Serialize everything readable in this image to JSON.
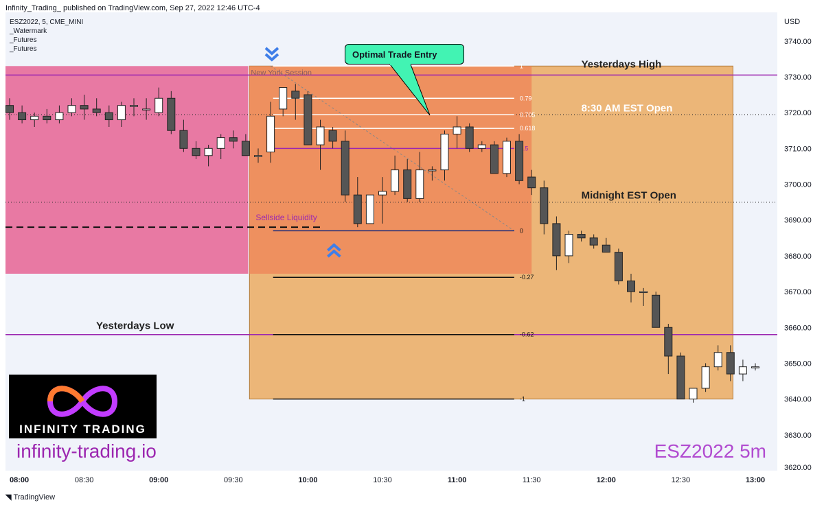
{
  "header": {
    "published": "Infinity_Trading_ published on TradingView.com, Sep 27, 2022 12:46 UTC-4"
  },
  "legend": {
    "symbol_line": "ESZ2022, 5, CME_MINI",
    "watermark": "_Watermark",
    "futures_1": "_Futures",
    "futures_2": "_Futures"
  },
  "footer": {
    "brand": "TradingView"
  },
  "branding": {
    "logo_text": "INFINITY TRADING",
    "site": "infinity-trading.io",
    "symbol": "ESZ2022   5m"
  },
  "annotations": {
    "callout": "Optimal Trade Entry",
    "ny_session": "New York Session",
    "sellside": "Sellside Liquidity",
    "yest_high": "Yesterdays High",
    "open_830": "8:30 AM EST Open",
    "midnight": "Midnight EST Open",
    "yest_low": "Yesterdays Low"
  },
  "colors": {
    "up": "#ffffff",
    "down": "#555555",
    "pink_zone": "#e879a3",
    "orange_zone": "#ecb678",
    "session": "#ef8a5a",
    "purple": "#9c27b0",
    "callout": "#42f3b3",
    "chevron": "#3f7ee8"
  },
  "chart_data": {
    "type": "candlestick",
    "currency": "USD",
    "ylim": [
      3620,
      3748
    ],
    "y_ticks": [
      "3740.00",
      "3730.00",
      "3720.00",
      "3710.00",
      "3700.00",
      "3690.00",
      "3680.00",
      "3670.00",
      "3660.00",
      "3650.00",
      "3640.00",
      "3630.00",
      "3620.00"
    ],
    "x_ticks": [
      {
        "t": 0,
        "label": "08:00",
        "bold": true
      },
      {
        "t": 6,
        "label": "08:30",
        "bold": false
      },
      {
        "t": 12,
        "label": "09:00",
        "bold": true
      },
      {
        "t": 18,
        "label": "09:30",
        "bold": false
      },
      {
        "t": 24,
        "label": "10:00",
        "bold": true
      },
      {
        "t": 30,
        "label": "10:30",
        "bold": false
      },
      {
        "t": 36,
        "label": "11:00",
        "bold": true
      },
      {
        "t": 42,
        "label": "11:30",
        "bold": false
      },
      {
        "t": 48,
        "label": "12:00",
        "bold": true
      },
      {
        "t": 54,
        "label": "12:30",
        "bold": false
      },
      {
        "t": 60,
        "label": "13:00",
        "bold": true
      }
    ],
    "candles": [
      [
        3722,
        3724,
        3718,
        3720
      ],
      [
        3720,
        3722,
        3717,
        3718
      ],
      [
        3718,
        3720,
        3716,
        3719
      ],
      [
        3719,
        3721,
        3717,
        3718
      ],
      [
        3718,
        3722,
        3717,
        3720
      ],
      [
        3720,
        3724,
        3719,
        3722
      ],
      [
        3722,
        3725,
        3718,
        3721
      ],
      [
        3721,
        3724,
        3719,
        3720
      ],
      [
        3720,
        3722,
        3716,
        3718
      ],
      [
        3718,
        3723,
        3716,
        3722
      ],
      [
        3722,
        3724,
        3719,
        3722
      ],
      [
        3721,
        3724,
        3718,
        3721
      ],
      [
        3720,
        3727,
        3719,
        3724
      ],
      [
        3724,
        3726,
        3714,
        3715
      ],
      [
        3715,
        3718,
        3709,
        3710
      ],
      [
        3710,
        3712,
        3707,
        3708
      ],
      [
        3708,
        3711,
        3705,
        3710
      ],
      [
        3710,
        3714,
        3707,
        3713
      ],
      [
        3713,
        3715,
        3710,
        3712
      ],
      [
        3712,
        3714,
        3708,
        3708
      ],
      [
        3708,
        3710,
        3706,
        3708
      ],
      [
        3709,
        3723,
        3706,
        3719
      ],
      [
        3721,
        3727,
        3719,
        3727
      ],
      [
        3726,
        3728,
        3718,
        3724
      ],
      [
        3725,
        3726,
        3711,
        3711
      ],
      [
        3711,
        3718,
        3704,
        3716
      ],
      [
        3715,
        3716,
        3710,
        3712
      ],
      [
        3712,
        3715,
        3695,
        3697
      ],
      [
        3697,
        3702,
        3688,
        3689
      ],
      [
        3689,
        3697,
        3689,
        3697
      ],
      [
        3697,
        3702,
        3689,
        3698
      ],
      [
        3698,
        3708,
        3697,
        3704
      ],
      [
        3704,
        3707,
        3695,
        3696
      ],
      [
        3696,
        3709,
        3695,
        3704
      ],
      [
        3704,
        3705,
        3701,
        3704
      ],
      [
        3704,
        3715,
        3701,
        3714
      ],
      [
        3714,
        3719,
        3710,
        3716
      ],
      [
        3716,
        3717,
        3709,
        3710
      ],
      [
        3710,
        3712,
        3709,
        3711
      ],
      [
        3711,
        3712,
        3703,
        3703
      ],
      [
        3703,
        3713,
        3702,
        3712
      ],
      [
        3712,
        3714,
        3700,
        3701
      ],
      [
        3702,
        3704,
        3697,
        3699
      ],
      [
        3699,
        3701,
        3686,
        3689
      ],
      [
        3689,
        3691,
        3676,
        3680
      ],
      [
        3680,
        3687,
        3678,
        3686
      ],
      [
        3686,
        3687,
        3684,
        3685
      ],
      [
        3685,
        3686,
        3682,
        3683
      ],
      [
        3683,
        3685,
        3681,
        3681
      ],
      [
        3681,
        3682,
        3672,
        3673
      ],
      [
        3673,
        3675,
        3667,
        3670
      ],
      [
        3670,
        3671,
        3666,
        3670
      ],
      [
        3669,
        3670,
        3660,
        3660
      ],
      [
        3660,
        3661,
        3647,
        3652
      ],
      [
        3652,
        3653,
        3640,
        3640
      ],
      [
        3640,
        3643,
        3639,
        3643
      ],
      [
        3643,
        3650,
        3642,
        3649
      ],
      [
        3649,
        3655,
        3648,
        3653
      ],
      [
        3653,
        3655,
        3645,
        3647
      ],
      [
        3647,
        3651,
        3645,
        3649
      ],
      [
        3649,
        3650,
        3648,
        3649
      ]
    ],
    "fib_levels": [
      {
        "label": "1",
        "price": 3733
      },
      {
        "label": "0.79",
        "price": 3724
      },
      {
        "label": "0.705",
        "price": 3719.4
      },
      {
        "label": "0.618",
        "price": 3715.6
      },
      {
        "label": "0.5",
        "price": 3710
      },
      {
        "label": "0",
        "price": 3687
      },
      {
        "label": "-0.27",
        "price": 3674
      },
      {
        "label": "-0.62",
        "price": 3658
      },
      {
        "label": "-1",
        "price": 3640
      }
    ],
    "levels": {
      "yesterdays_high": 3730.5,
      "open_830": 3719.4,
      "midnight_open": 3695,
      "yesterdays_low": 3658,
      "sellside_liquidity": 3688
    }
  }
}
